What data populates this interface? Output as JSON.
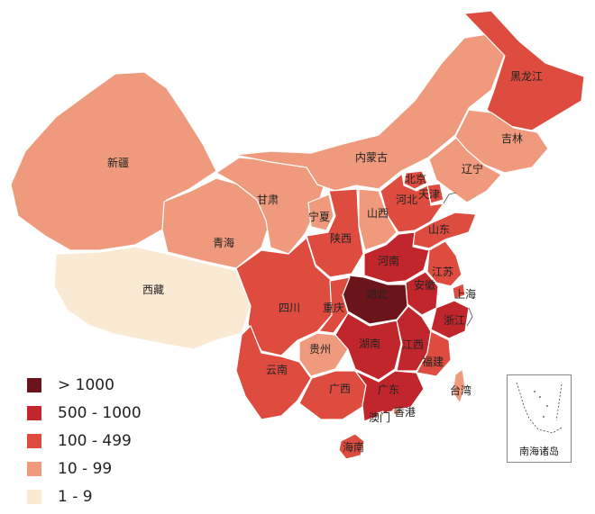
{
  "legend": [
    {
      "label": "> 1000",
      "color": "#6b1419"
    },
    {
      "label": "500 - 1000",
      "color": "#c0262c"
    },
    {
      "label": "100 - 499",
      "color": "#dd4c3e"
    },
    {
      "label": "10 - 99",
      "color": "#ef9a7d"
    },
    {
      "label": "1 - 9",
      "color": "#fbead3"
    }
  ],
  "inset": {
    "label": "南海诸岛"
  },
  "regions": [
    {
      "id": "xinjiang",
      "label": "新疆",
      "tier": "10 - 99"
    },
    {
      "id": "xizang",
      "label": "西藏",
      "tier": "1 - 9"
    },
    {
      "id": "qinghai",
      "label": "青海",
      "tier": "10 - 99"
    },
    {
      "id": "gansu",
      "label": "甘肃",
      "tier": "10 - 99"
    },
    {
      "id": "neimenggu",
      "label": "内蒙古",
      "tier": "10 - 99"
    },
    {
      "id": "heilongjiang",
      "label": "黑龙江",
      "tier": "100 - 499"
    },
    {
      "id": "jilin",
      "label": "吉林",
      "tier": "10 - 99"
    },
    {
      "id": "liaoning",
      "label": "辽宁",
      "tier": "10 - 99"
    },
    {
      "id": "beijing",
      "label": "北京",
      "tier": "100 - 499"
    },
    {
      "id": "tianjin",
      "label": "天津",
      "tier": "100 - 499"
    },
    {
      "id": "hebei",
      "label": "河北",
      "tier": "100 - 499"
    },
    {
      "id": "shanxi",
      "label": "山西",
      "tier": "10 - 99"
    },
    {
      "id": "ningxia",
      "label": "宁夏",
      "tier": "10 - 99"
    },
    {
      "id": "shaanxi",
      "label": "陕西",
      "tier": "100 - 499"
    },
    {
      "id": "shandong",
      "label": "山东",
      "tier": "100 - 499"
    },
    {
      "id": "henan",
      "label": "河南",
      "tier": "500 - 1000"
    },
    {
      "id": "jiangsu",
      "label": "江苏",
      "tier": "100 - 499"
    },
    {
      "id": "anhui",
      "label": "安徽",
      "tier": "500 - 1000"
    },
    {
      "id": "shanghai",
      "label": "上海",
      "tier": "100 - 499"
    },
    {
      "id": "hubei",
      "label": "湖北",
      "tier": "> 1000"
    },
    {
      "id": "sichuan",
      "label": "四川",
      "tier": "100 - 499"
    },
    {
      "id": "chongqing",
      "label": "重庆",
      "tier": "100 - 499"
    },
    {
      "id": "zhejiang",
      "label": "浙江",
      "tier": "500 - 1000"
    },
    {
      "id": "guizhou",
      "label": "贵州",
      "tier": "10 - 99"
    },
    {
      "id": "hunan",
      "label": "湖南",
      "tier": "500 - 1000"
    },
    {
      "id": "jiangxi",
      "label": "江西",
      "tier": "500 - 1000"
    },
    {
      "id": "yunnan",
      "label": "云南",
      "tier": "100 - 499"
    },
    {
      "id": "fujian",
      "label": "福建",
      "tier": "100 - 499"
    },
    {
      "id": "guangxi",
      "label": "广西",
      "tier": "100 - 499"
    },
    {
      "id": "guangdong",
      "label": "广东",
      "tier": "500 - 1000"
    },
    {
      "id": "taiwan",
      "label": "台湾",
      "tier": "10 - 99"
    },
    {
      "id": "aomen",
      "label": "澳门",
      "tier": "1 - 9"
    },
    {
      "id": "xianggang",
      "label": "香港",
      "tier": "10 - 99"
    },
    {
      "id": "hainan",
      "label": "海南",
      "tier": "100 - 499"
    }
  ]
}
